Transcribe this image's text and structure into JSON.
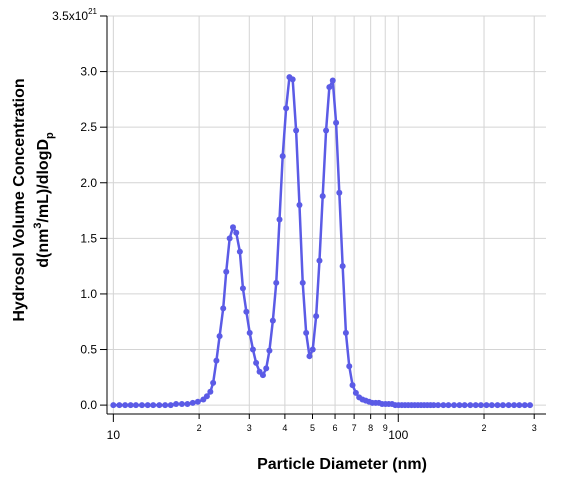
{
  "chart_data": {
    "type": "line",
    "title": "",
    "xlabel": "Particle Diameter (nm)",
    "ylabel_line1": "Hydrosol Volume Concentration",
    "ylabel_line2_prefix": "d(nm",
    "ylabel_line2_sup": "3",
    "ylabel_line2_mid": "/mL)/dlogD",
    "ylabel_line2_sub": "p",
    "x_scale": "log",
    "xlim": [
      9.5,
      330
    ],
    "ylim": [
      -0.08,
      3.5
    ],
    "y_units_note": "x10^21",
    "grid": true,
    "series_color": "#5b5be6",
    "x_major_ticks": [
      {
        "value": 10,
        "label": "10"
      },
      {
        "value": 100,
        "label": "100"
      }
    ],
    "x_minor_ticks": [
      {
        "value": 20,
        "label": "2"
      },
      {
        "value": 30,
        "label": "3"
      },
      {
        "value": 40,
        "label": "4"
      },
      {
        "value": 50,
        "label": "5"
      },
      {
        "value": 60,
        "label": "6"
      },
      {
        "value": 70,
        "label": "7"
      },
      {
        "value": 80,
        "label": "8"
      },
      {
        "value": 90,
        "label": "9"
      },
      {
        "value": 200,
        "label": "2"
      },
      {
        "value": 300,
        "label": "3"
      }
    ],
    "y_ticks": [
      {
        "value": 0.0,
        "label": "0.0"
      },
      {
        "value": 0.5,
        "label": "0.5"
      },
      {
        "value": 1.0,
        "label": "1.0"
      },
      {
        "value": 1.5,
        "label": "1.5"
      },
      {
        "value": 2.0,
        "label": "2.0"
      },
      {
        "value": 2.5,
        "label": "2.5"
      },
      {
        "value": 3.0,
        "label": "3.0"
      },
      {
        "value": 3.5,
        "label": "3.5x10",
        "sup": "21"
      }
    ],
    "series": [
      {
        "x": [
          10.0,
          10.5,
          11.0,
          11.5,
          12.0,
          12.6,
          13.2,
          13.8,
          14.5,
          15.2,
          15.9,
          16.6,
          17.4,
          18.2,
          19.0,
          19.8,
          20.7,
          21.3,
          21.9,
          22.4,
          23.0,
          23.6,
          24.3,
          24.9,
          25.6,
          26.3,
          27.0,
          27.8,
          28.5,
          29.3,
          30.1,
          30.9,
          31.7,
          32.6,
          33.5,
          34.4,
          35.3,
          36.3,
          37.3,
          38.3,
          39.3,
          40.4,
          41.5,
          42.6,
          43.8,
          45.0,
          46.2,
          47.5,
          48.8,
          50.1,
          51.5,
          52.9,
          54.3,
          55.8,
          57.3,
          58.9,
          60.5,
          62.1,
          63.8,
          65.5,
          67.3,
          69.1,
          71.0,
          72.9,
          74.9,
          76.9,
          79.0,
          81.1,
          83.3,
          85.5,
          87.8,
          90.2,
          92.6,
          95.1,
          97.6,
          100.2,
          102.9,
          105.6,
          108.4,
          111.3,
          114.2,
          117.2,
          120.2,
          123.3,
          126.5,
          129.8,
          133.2,
          138.0,
          144.0,
          150.0,
          157.0,
          164.0,
          171.0,
          179.0,
          187.0,
          195.0,
          204.0,
          213.0,
          223.0,
          233.0,
          244.0,
          255.0,
          266.0,
          278.0,
          290.0
        ],
        "y": [
          0.0,
          0.0,
          0.0,
          0.0,
          0.0,
          0.0,
          0.0,
          0.0,
          0.0,
          0.0,
          0.0,
          0.01,
          0.01,
          0.01,
          0.02,
          0.03,
          0.05,
          0.08,
          0.12,
          0.2,
          0.4,
          0.62,
          0.87,
          1.2,
          1.5,
          1.6,
          1.55,
          1.38,
          1.05,
          0.84,
          0.65,
          0.5,
          0.38,
          0.3,
          0.27,
          0.33,
          0.49,
          0.76,
          1.1,
          1.67,
          2.24,
          2.67,
          2.95,
          2.93,
          2.47,
          1.8,
          1.1,
          0.65,
          0.44,
          0.5,
          0.8,
          1.3,
          1.88,
          2.47,
          2.86,
          2.92,
          2.54,
          1.91,
          1.25,
          0.65,
          0.35,
          0.18,
          0.11,
          0.07,
          0.05,
          0.04,
          0.03,
          0.02,
          0.02,
          0.02,
          0.01,
          0.01,
          0.01,
          0.01,
          0.0,
          0.0,
          0.0,
          0.0,
          0.0,
          0.0,
          0.0,
          0.0,
          0.0,
          0.0,
          0.0,
          0.0,
          0.0,
          0.0,
          0.0,
          0.0,
          0.0,
          0.0,
          0.0,
          0.0,
          0.0,
          0.0,
          0.0,
          0.0,
          0.0,
          0.0,
          0.0,
          0.0,
          0.0,
          0.0,
          0.0
        ]
      }
    ]
  }
}
